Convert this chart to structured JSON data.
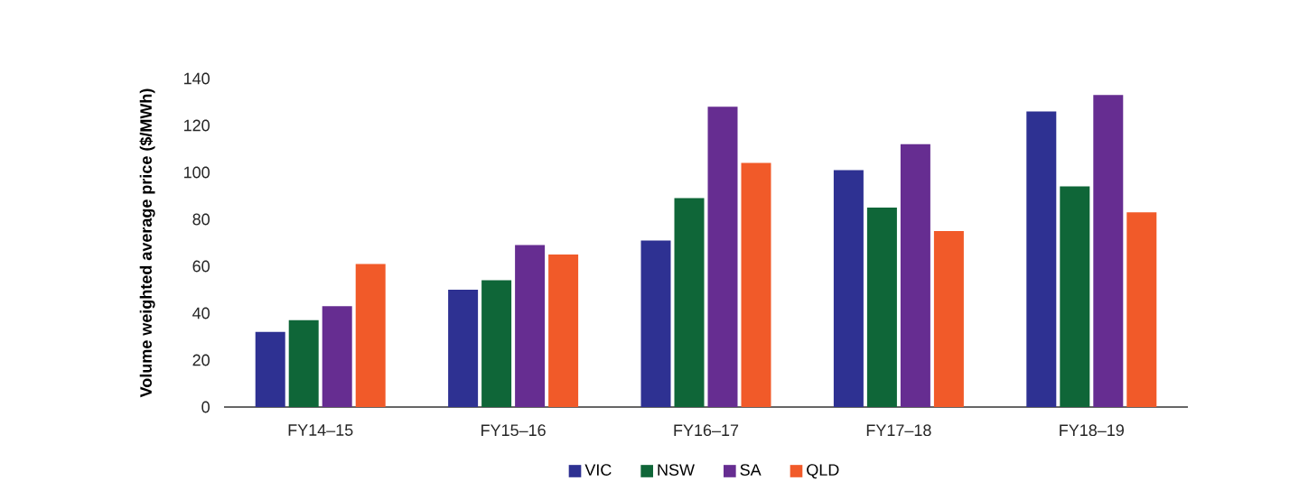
{
  "chart_data": {
    "type": "bar",
    "ylabel": "Volume weighted average price ($/MWh)",
    "categories": [
      "FY14–15",
      "FY15–16",
      "FY16–17",
      "FY17–18",
      "FY18–19"
    ],
    "ylim": [
      0,
      140
    ],
    "yticks": [
      0,
      20,
      40,
      60,
      80,
      100,
      120,
      140
    ],
    "legend": "bottom",
    "series": [
      {
        "name": "VIC",
        "color": "#2e3192",
        "values": [
          32,
          50,
          71,
          101,
          126
        ]
      },
      {
        "name": "NSW",
        "color": "#0f6638",
        "values": [
          37,
          54,
          89,
          85,
          94
        ]
      },
      {
        "name": "SA",
        "color": "#662d91",
        "values": [
          43,
          69,
          128,
          112,
          133
        ]
      },
      {
        "name": "QLD",
        "color": "#f15a29",
        "values": [
          61,
          65,
          104,
          75,
          83
        ]
      }
    ]
  }
}
